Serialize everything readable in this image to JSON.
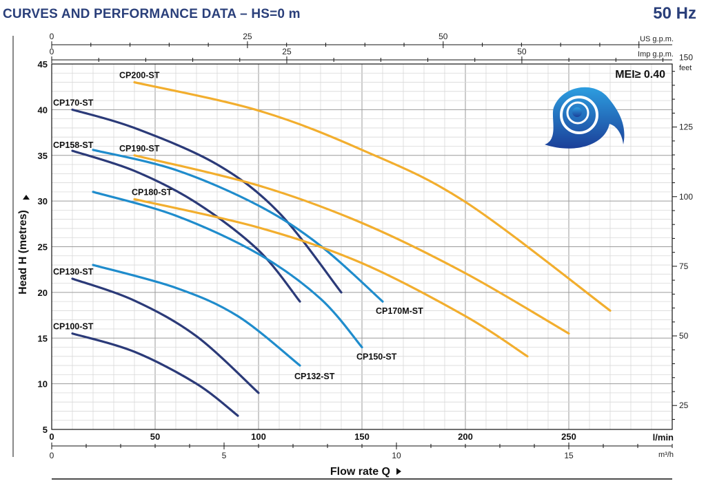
{
  "header": {
    "title": "CURVES AND PERFORMANCE DATA  –  HS=0 m",
    "frequency": "50 Hz"
  },
  "annotation": {
    "mei": "MEI≥ 0.40"
  },
  "colors": {
    "navy": "#2b3a78",
    "blue": "#1f8ccc",
    "orange": "#f2ae2e",
    "grid_major": "#9a9a9a",
    "grid_minor": "#d8d8d8",
    "logo_dark": "#1b3f98",
    "logo_light": "#2d9ee0"
  },
  "icons": {
    "logo": "swirl-logo-icon",
    "x_arrow": "triangle-right-icon",
    "y_arrow": "triangle-up-icon"
  },
  "chart_data": {
    "type": "line",
    "title": "CURVES AND PERFORMANCE DATA  –  HS=0 m",
    "xlabel": "Flow rate Q",
    "ylabel": "Head H (metres)",
    "xlim": [
      0,
      300
    ],
    "ylim": [
      5,
      45
    ],
    "grid": true,
    "x_unit": "l/min",
    "x_ticks": [
      0,
      50,
      100,
      150,
      200,
      250
    ],
    "y_ticks": [
      5,
      10,
      15,
      20,
      25,
      30,
      35,
      40,
      45
    ],
    "secondary_axes": {
      "m3h": {
        "unit": "m³/h",
        "ticks": [
          0,
          5,
          10,
          15
        ]
      },
      "us_gpm": {
        "unit": "US g.p.m.",
        "ticks": [
          0,
          25,
          50
        ]
      },
      "imp_gpm": {
        "unit": "Imp g.p.m.",
        "ticks": [
          0,
          25,
          50
        ]
      },
      "feet": {
        "unit": "feet",
        "ticks": [
          25,
          50,
          75,
          100,
          125,
          150
        ]
      }
    },
    "series": [
      {
        "name": "CP100-ST",
        "color": "navy",
        "x": [
          10,
          40,
          70,
          90
        ],
        "y": [
          15.5,
          13.5,
          10,
          6.5
        ]
      },
      {
        "name": "CP130-ST",
        "color": "navy",
        "x": [
          10,
          40,
          70,
          100
        ],
        "y": [
          21.5,
          19.1,
          15.2,
          9
        ]
      },
      {
        "name": "CP132-ST",
        "color": "blue",
        "x": [
          20,
          60,
          90,
          120
        ],
        "y": [
          23,
          20.5,
          17.4,
          12
        ]
      },
      {
        "name": "CP158-ST",
        "color": "navy",
        "x": [
          10,
          40,
          70,
          100,
          120
        ],
        "y": [
          35.5,
          33.3,
          29.8,
          24.6,
          19
        ]
      },
      {
        "name": "CP150-ST",
        "color": "blue",
        "x": [
          20,
          60,
          100,
          130,
          150
        ],
        "y": [
          31,
          28.4,
          24.2,
          19.3,
          14
        ]
      },
      {
        "name": "CP170-ST",
        "color": "navy",
        "x": [
          10,
          40,
          80,
          110,
          140
        ],
        "y": [
          40,
          38,
          34,
          28.7,
          20
        ]
      },
      {
        "name": "CP170M-ST",
        "color": "blue",
        "x": [
          20,
          60,
          100,
          130,
          160
        ],
        "y": [
          35.6,
          33.4,
          29.5,
          25.1,
          19
        ]
      },
      {
        "name": "CP180-ST",
        "color": "orange",
        "x": [
          40,
          100,
          150,
          200,
          230
        ],
        "y": [
          30.2,
          27.1,
          23.2,
          17.4,
          13
        ]
      },
      {
        "name": "CP190-ST",
        "color": "orange",
        "x": [
          40,
          100,
          150,
          200,
          250
        ],
        "y": [
          35,
          31.7,
          27.6,
          22.1,
          15.5
        ]
      },
      {
        "name": "CP200-ST",
        "color": "orange",
        "x": [
          40,
          100,
          150,
          200,
          270
        ],
        "y": [
          43,
          39.9,
          35.6,
          29.9,
          18
        ]
      }
    ]
  }
}
